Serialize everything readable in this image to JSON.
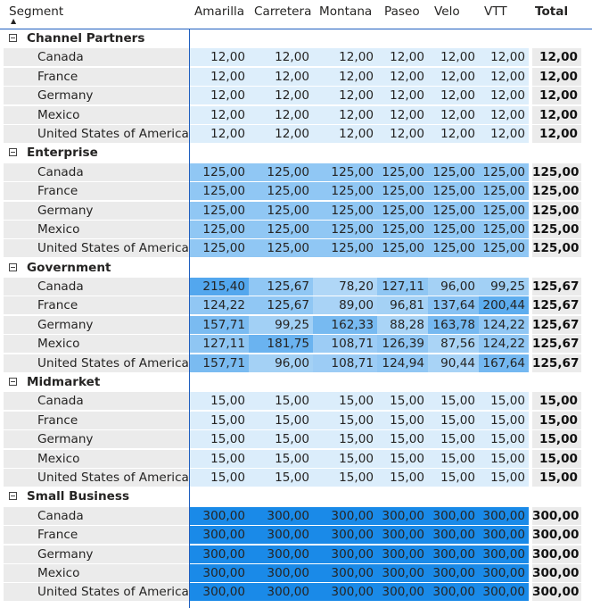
{
  "header": {
    "segment_label": "Segment",
    "sort_icon": "sort-up-icon",
    "columns": [
      "Amarilla",
      "Carretera",
      "Montana",
      "Paseo",
      "Velo",
      "VTT"
    ],
    "total_label": "Total"
  },
  "colors": {
    "divider": "#1f5fbf",
    "label_bg": "#ebebeb",
    "total_bg": "#ebebeb",
    "heat_low": "#ddeefb",
    "heat_high": "#1a8ae8"
  },
  "groups": [
    {
      "name": "Channel Partners",
      "rows": [
        {
          "country": "Canada",
          "values": [
            "12,00",
            "12,00",
            "12,00",
            "12,00",
            "12,00",
            "12,00"
          ],
          "total": "12,00"
        },
        {
          "country": "France",
          "values": [
            "12,00",
            "12,00",
            "12,00",
            "12,00",
            "12,00",
            "12,00"
          ],
          "total": "12,00"
        },
        {
          "country": "Germany",
          "values": [
            "12,00",
            "12,00",
            "12,00",
            "12,00",
            "12,00",
            "12,00"
          ],
          "total": "12,00"
        },
        {
          "country": "Mexico",
          "values": [
            "12,00",
            "12,00",
            "12,00",
            "12,00",
            "12,00",
            "12,00"
          ],
          "total": "12,00"
        },
        {
          "country": "United States of America",
          "values": [
            "12,00",
            "12,00",
            "12,00",
            "12,00",
            "12,00",
            "12,00"
          ],
          "total": "12,00"
        }
      ]
    },
    {
      "name": "Enterprise",
      "rows": [
        {
          "country": "Canada",
          "values": [
            "125,00",
            "125,00",
            "125,00",
            "125,00",
            "125,00",
            "125,00"
          ],
          "total": "125,00"
        },
        {
          "country": "France",
          "values": [
            "125,00",
            "125,00",
            "125,00",
            "125,00",
            "125,00",
            "125,00"
          ],
          "total": "125,00"
        },
        {
          "country": "Germany",
          "values": [
            "125,00",
            "125,00",
            "125,00",
            "125,00",
            "125,00",
            "125,00"
          ],
          "total": "125,00"
        },
        {
          "country": "Mexico",
          "values": [
            "125,00",
            "125,00",
            "125,00",
            "125,00",
            "125,00",
            "125,00"
          ],
          "total": "125,00"
        },
        {
          "country": "United States of America",
          "values": [
            "125,00",
            "125,00",
            "125,00",
            "125,00",
            "125,00",
            "125,00"
          ],
          "total": "125,00"
        }
      ]
    },
    {
      "name": "Government",
      "rows": [
        {
          "country": "Canada",
          "values": [
            "215,40",
            "125,67",
            "78,20",
            "127,11",
            "96,00",
            "99,25"
          ],
          "total": "125,67"
        },
        {
          "country": "France",
          "values": [
            "124,22",
            "125,67",
            "89,00",
            "96,81",
            "137,64",
            "200,44"
          ],
          "total": "125,67"
        },
        {
          "country": "Germany",
          "values": [
            "157,71",
            "99,25",
            "162,33",
            "88,28",
            "163,78",
            "124,22"
          ],
          "total": "125,67"
        },
        {
          "country": "Mexico",
          "values": [
            "127,11",
            "181,75",
            "108,71",
            "126,39",
            "87,56",
            "124,22"
          ],
          "total": "125,67"
        },
        {
          "country": "United States of America",
          "values": [
            "157,71",
            "96,00",
            "108,71",
            "124,94",
            "90,44",
            "167,64"
          ],
          "total": "125,67"
        }
      ]
    },
    {
      "name": "Midmarket",
      "rows": [
        {
          "country": "Canada",
          "values": [
            "15,00",
            "15,00",
            "15,00",
            "15,00",
            "15,00",
            "15,00"
          ],
          "total": "15,00"
        },
        {
          "country": "France",
          "values": [
            "15,00",
            "15,00",
            "15,00",
            "15,00",
            "15,00",
            "15,00"
          ],
          "total": "15,00"
        },
        {
          "country": "Germany",
          "values": [
            "15,00",
            "15,00",
            "15,00",
            "15,00",
            "15,00",
            "15,00"
          ],
          "total": "15,00"
        },
        {
          "country": "Mexico",
          "values": [
            "15,00",
            "15,00",
            "15,00",
            "15,00",
            "15,00",
            "15,00"
          ],
          "total": "15,00"
        },
        {
          "country": "United States of America",
          "values": [
            "15,00",
            "15,00",
            "15,00",
            "15,00",
            "15,00",
            "15,00"
          ],
          "total": "15,00"
        }
      ]
    },
    {
      "name": "Small Business",
      "rows": [
        {
          "country": "Canada",
          "values": [
            "300,00",
            "300,00",
            "300,00",
            "300,00",
            "300,00",
            "300,00"
          ],
          "total": "300,00"
        },
        {
          "country": "France",
          "values": [
            "300,00",
            "300,00",
            "300,00",
            "300,00",
            "300,00",
            "300,00"
          ],
          "total": "300,00"
        },
        {
          "country": "Germany",
          "values": [
            "300,00",
            "300,00",
            "300,00",
            "300,00",
            "300,00",
            "300,00"
          ],
          "total": "300,00"
        },
        {
          "country": "Mexico",
          "values": [
            "300,00",
            "300,00",
            "300,00",
            "300,00",
            "300,00",
            "300,00"
          ],
          "total": "300,00"
        },
        {
          "country": "United States of America",
          "values": [
            "300,00",
            "300,00",
            "300,00",
            "300,00",
            "300,00",
            "300,00"
          ],
          "total": "300,00"
        }
      ]
    }
  ]
}
